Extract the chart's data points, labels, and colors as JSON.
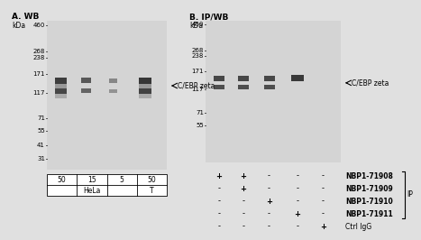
{
  "bg_color": "#e0e0e0",
  "blot_color_A": "#d8d8d8",
  "blot_color_B": "#d8d8d8",
  "panel_A_title": "A. WB",
  "panel_B_title": "B. IP/WB",
  "kda_label": "kDa",
  "markers_A": [
    460,
    268,
    238,
    171,
    117,
    71,
    55,
    41,
    31
  ],
  "markers_B": [
    460,
    268,
    238,
    171,
    117,
    71,
    55
  ],
  "band_label": "C/EBP zeta",
  "lane_labels_A": [
    "50",
    "15",
    "5",
    "50"
  ],
  "cell_line_A": [
    "HeLa",
    "T"
  ],
  "ip_table": [
    [
      "+",
      "+",
      "-",
      "-",
      "-"
    ],
    [
      "-",
      "+",
      "-",
      "-",
      "-"
    ],
    [
      "-",
      "-",
      "+",
      "-",
      "-"
    ],
    [
      "-",
      "-",
      "-",
      "+",
      "-"
    ],
    [
      "-",
      "-",
      "-",
      "-",
      "+"
    ]
  ],
  "ip_labels": [
    "NBP1-71908",
    "NBP1-71909",
    "NBP1-71910",
    "NBP1-71911",
    "Ctrl IgG"
  ],
  "ip_bold": [
    true,
    true,
    true,
    true,
    false
  ]
}
